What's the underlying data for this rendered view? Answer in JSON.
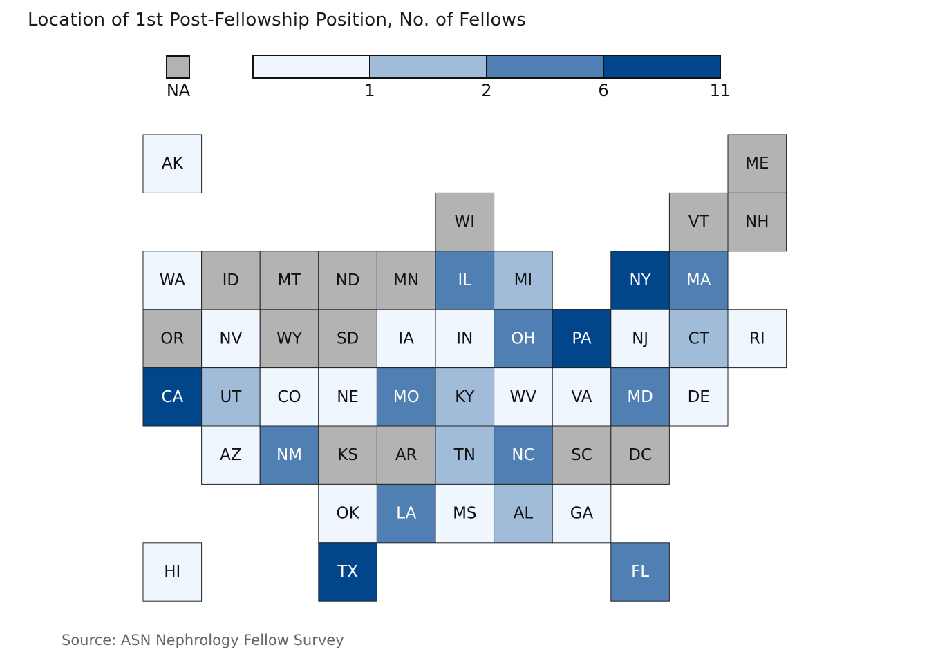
{
  "chart_data": {
    "type": "heatmap",
    "subtype": "tile-grid-map",
    "title": "Location of 1st Post-Fellowship Position, No. of Fellows",
    "source": "Source: ASN Nephrology Fellow Survey",
    "legend": {
      "na_label": "NA",
      "na_color": "#b3b3b3",
      "breaks": [
        "1",
        "2",
        "6",
        "11"
      ],
      "colors": [
        "#eff6fd",
        "#a0bcd8",
        "#5080b3",
        "#01468b"
      ]
    },
    "tiles": [
      {
        "state": "AK",
        "bin": 0
      },
      {
        "state": "ME",
        "bin": "NA"
      },
      {
        "state": "WI",
        "bin": "NA"
      },
      {
        "state": "VT",
        "bin": "NA"
      },
      {
        "state": "NH",
        "bin": "NA"
      },
      {
        "state": "WA",
        "bin": 0
      },
      {
        "state": "ID",
        "bin": "NA"
      },
      {
        "state": "MT",
        "bin": "NA"
      },
      {
        "state": "ND",
        "bin": "NA"
      },
      {
        "state": "MN",
        "bin": "NA"
      },
      {
        "state": "IL",
        "bin": 2
      },
      {
        "state": "MI",
        "bin": 1
      },
      {
        "state": "NY",
        "bin": 3
      },
      {
        "state": "MA",
        "bin": 2
      },
      {
        "state": "OR",
        "bin": "NA"
      },
      {
        "state": "NV",
        "bin": 0
      },
      {
        "state": "WY",
        "bin": "NA"
      },
      {
        "state": "SD",
        "bin": "NA"
      },
      {
        "state": "IA",
        "bin": 0
      },
      {
        "state": "IN",
        "bin": 0
      },
      {
        "state": "OH",
        "bin": 2
      },
      {
        "state": "PA",
        "bin": 3
      },
      {
        "state": "NJ",
        "bin": 0
      },
      {
        "state": "CT",
        "bin": 1
      },
      {
        "state": "RI",
        "bin": 0
      },
      {
        "state": "CA",
        "bin": 3
      },
      {
        "state": "UT",
        "bin": 1
      },
      {
        "state": "CO",
        "bin": 0
      },
      {
        "state": "NE",
        "bin": 0
      },
      {
        "state": "MO",
        "bin": 2
      },
      {
        "state": "KY",
        "bin": 1
      },
      {
        "state": "WV",
        "bin": 0
      },
      {
        "state": "VA",
        "bin": 0
      },
      {
        "state": "MD",
        "bin": 2
      },
      {
        "state": "DE",
        "bin": 0
      },
      {
        "state": "AZ",
        "bin": 0
      },
      {
        "state": "NM",
        "bin": 2
      },
      {
        "state": "KS",
        "bin": "NA"
      },
      {
        "state": "AR",
        "bin": "NA"
      },
      {
        "state": "TN",
        "bin": 1
      },
      {
        "state": "NC",
        "bin": 2
      },
      {
        "state": "SC",
        "bin": "NA"
      },
      {
        "state": "DC",
        "bin": "NA"
      },
      {
        "state": "OK",
        "bin": 0
      },
      {
        "state": "LA",
        "bin": 2
      },
      {
        "state": "MS",
        "bin": 0
      },
      {
        "state": "AL",
        "bin": 1
      },
      {
        "state": "GA",
        "bin": 0
      },
      {
        "state": "HI",
        "bin": 0
      },
      {
        "state": "TX",
        "bin": 3
      },
      {
        "state": "FL",
        "bin": 2
      }
    ]
  }
}
